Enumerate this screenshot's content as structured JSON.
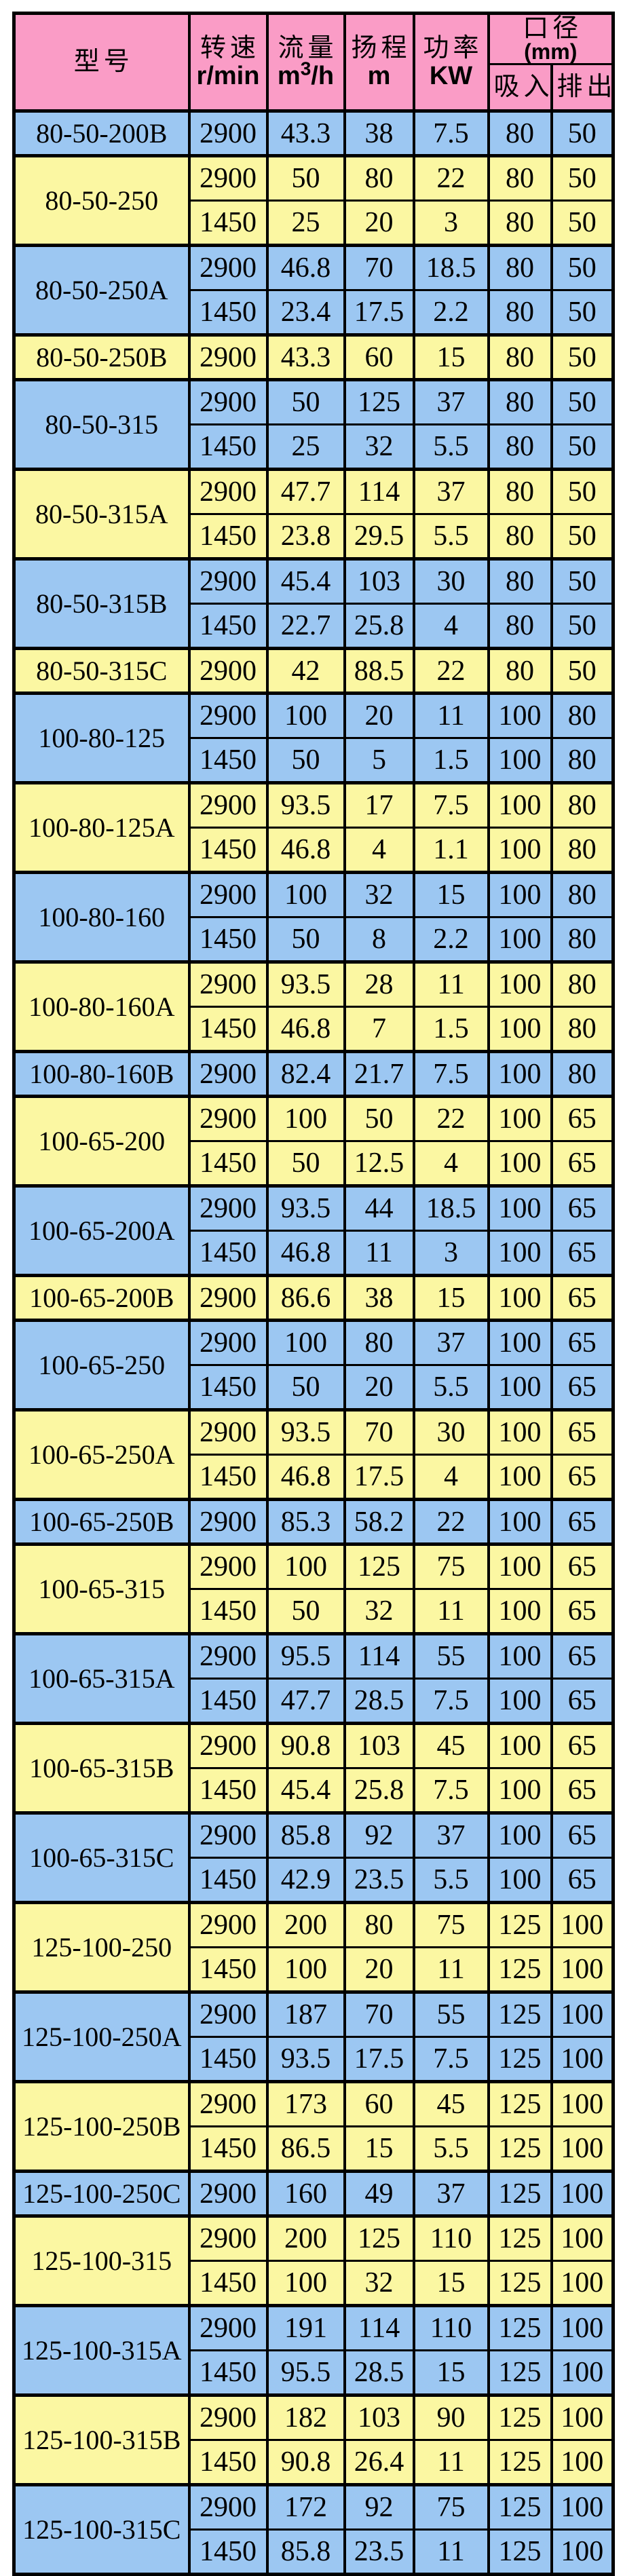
{
  "header": {
    "model_label": "型号",
    "speed_label": "转速",
    "speed_unit": "r/min",
    "flow_label": "流量",
    "flow_unit_pre": "m",
    "flow_unit_sup": "3",
    "flow_unit_post": "/h",
    "head_label": "扬程",
    "head_unit": "m",
    "power_label": "功率",
    "power_unit": "KW",
    "diameter_label": "口径",
    "diameter_unit": "(mm)",
    "suction_label": "吸入",
    "discharge_label": "排出"
  },
  "colors": {
    "page_bg": "#ffffff",
    "header_bg": "#fa9cc6",
    "band_blue": "#9cc7f2",
    "band_yellow": "#fbf7a2",
    "border_color": "#000000",
    "text_color": "#000000"
  },
  "groups": [
    {
      "model": "80-50-200B",
      "band": "blue",
      "rows": [
        [
          "2900",
          "43.3",
          "38",
          "7.5",
          "80",
          "50"
        ]
      ]
    },
    {
      "model": "80-50-250",
      "band": "yellow",
      "rows": [
        [
          "2900",
          "50",
          "80",
          "22",
          "80",
          "50"
        ],
        [
          "1450",
          "25",
          "20",
          "3",
          "80",
          "50"
        ]
      ]
    },
    {
      "model": "80-50-250A",
      "band": "blue",
      "rows": [
        [
          "2900",
          "46.8",
          "70",
          "18.5",
          "80",
          "50"
        ],
        [
          "1450",
          "23.4",
          "17.5",
          "2.2",
          "80",
          "50"
        ]
      ]
    },
    {
      "model": "80-50-250B",
      "band": "yellow",
      "rows": [
        [
          "2900",
          "43.3",
          "60",
          "15",
          "80",
          "50"
        ]
      ]
    },
    {
      "model": "80-50-315",
      "band": "blue",
      "rows": [
        [
          "2900",
          "50",
          "125",
          "37",
          "80",
          "50"
        ],
        [
          "1450",
          "25",
          "32",
          "5.5",
          "80",
          "50"
        ]
      ]
    },
    {
      "model": "80-50-315A",
      "band": "yellow",
      "rows": [
        [
          "2900",
          "47.7",
          "114",
          "37",
          "80",
          "50"
        ],
        [
          "1450",
          "23.8",
          "29.5",
          "5.5",
          "80",
          "50"
        ]
      ]
    },
    {
      "model": "80-50-315B",
      "band": "blue",
      "rows": [
        [
          "2900",
          "45.4",
          "103",
          "30",
          "80",
          "50"
        ],
        [
          "1450",
          "22.7",
          "25.8",
          "4",
          "80",
          "50"
        ]
      ]
    },
    {
      "model": "80-50-315C",
      "band": "yellow",
      "rows": [
        [
          "2900",
          "42",
          "88.5",
          "22",
          "80",
          "50"
        ]
      ]
    },
    {
      "model": "100-80-125",
      "band": "blue",
      "rows": [
        [
          "2900",
          "100",
          "20",
          "11",
          "100",
          "80"
        ],
        [
          "1450",
          "50",
          "5",
          "1.5",
          "100",
          "80"
        ]
      ]
    },
    {
      "model": "100-80-125A",
      "band": "yellow",
      "rows": [
        [
          "2900",
          "93.5",
          "17",
          "7.5",
          "100",
          "80"
        ],
        [
          "1450",
          "46.8",
          "4",
          "1.1",
          "100",
          "80"
        ]
      ]
    },
    {
      "model": "100-80-160",
      "band": "blue",
      "rows": [
        [
          "2900",
          "100",
          "32",
          "15",
          "100",
          "80"
        ],
        [
          "1450",
          "50",
          "8",
          "2.2",
          "100",
          "80"
        ]
      ]
    },
    {
      "model": "100-80-160A",
      "band": "yellow",
      "rows": [
        [
          "2900",
          "93.5",
          "28",
          "11",
          "100",
          "80"
        ],
        [
          "1450",
          "46.8",
          "7",
          "1.5",
          "100",
          "80"
        ]
      ]
    },
    {
      "model": "100-80-160B",
      "band": "blue",
      "rows": [
        [
          "2900",
          "82.4",
          "21.7",
          "7.5",
          "100",
          "80"
        ]
      ]
    },
    {
      "model": "100-65-200",
      "band": "yellow",
      "rows": [
        [
          "2900",
          "100",
          "50",
          "22",
          "100",
          "65"
        ],
        [
          "1450",
          "50",
          "12.5",
          "4",
          "100",
          "65"
        ]
      ]
    },
    {
      "model": "100-65-200A",
      "band": "blue",
      "rows": [
        [
          "2900",
          "93.5",
          "44",
          "18.5",
          "100",
          "65"
        ],
        [
          "1450",
          "46.8",
          "11",
          "3",
          "100",
          "65"
        ]
      ]
    },
    {
      "model": "100-65-200B",
      "band": "yellow",
      "rows": [
        [
          "2900",
          "86.6",
          "38",
          "15",
          "100",
          "65"
        ]
      ]
    },
    {
      "model": "100-65-250",
      "band": "blue",
      "rows": [
        [
          "2900",
          "100",
          "80",
          "37",
          "100",
          "65"
        ],
        [
          "1450",
          "50",
          "20",
          "5.5",
          "100",
          "65"
        ]
      ]
    },
    {
      "model": "100-65-250A",
      "band": "yellow",
      "rows": [
        [
          "2900",
          "93.5",
          "70",
          "30",
          "100",
          "65"
        ],
        [
          "1450",
          "46.8",
          "17.5",
          "4",
          "100",
          "65"
        ]
      ]
    },
    {
      "model": "100-65-250B",
      "band": "blue",
      "rows": [
        [
          "2900",
          "85.3",
          "58.2",
          "22",
          "100",
          "65"
        ]
      ]
    },
    {
      "model": "100-65-315",
      "band": "yellow",
      "rows": [
        [
          "2900",
          "100",
          "125",
          "75",
          "100",
          "65"
        ],
        [
          "1450",
          "50",
          "32",
          "11",
          "100",
          "65"
        ]
      ]
    },
    {
      "model": "100-65-315A",
      "band": "blue",
      "rows": [
        [
          "2900",
          "95.5",
          "114",
          "55",
          "100",
          "65"
        ],
        [
          "1450",
          "47.7",
          "28.5",
          "7.5",
          "100",
          "65"
        ]
      ]
    },
    {
      "model": "100-65-315B",
      "band": "yellow",
      "rows": [
        [
          "2900",
          "90.8",
          "103",
          "45",
          "100",
          "65"
        ],
        [
          "1450",
          "45.4",
          "25.8",
          "7.5",
          "100",
          "65"
        ]
      ]
    },
    {
      "model": "100-65-315C",
      "band": "blue",
      "rows": [
        [
          "2900",
          "85.8",
          "92",
          "37",
          "100",
          "65"
        ],
        [
          "1450",
          "42.9",
          "23.5",
          "5.5",
          "100",
          "65"
        ]
      ]
    },
    {
      "model": "125-100-250",
      "band": "yellow",
      "rows": [
        [
          "2900",
          "200",
          "80",
          "75",
          "125",
          "100"
        ],
        [
          "1450",
          "100",
          "20",
          "11",
          "125",
          "100"
        ]
      ]
    },
    {
      "model": "125-100-250A",
      "band": "blue",
      "rows": [
        [
          "2900",
          "187",
          "70",
          "55",
          "125",
          "100"
        ],
        [
          "1450",
          "93.5",
          "17.5",
          "7.5",
          "125",
          "100"
        ]
      ]
    },
    {
      "model": "125-100-250B",
      "band": "yellow",
      "rows": [
        [
          "2900",
          "173",
          "60",
          "45",
          "125",
          "100"
        ],
        [
          "1450",
          "86.5",
          "15",
          "5.5",
          "125",
          "100"
        ]
      ]
    },
    {
      "model": "125-100-250C",
      "band": "blue",
      "rows": [
        [
          "2900",
          "160",
          "49",
          "37",
          "125",
          "100"
        ]
      ]
    },
    {
      "model": "125-100-315",
      "band": "yellow",
      "rows": [
        [
          "2900",
          "200",
          "125",
          "110",
          "125",
          "100"
        ],
        [
          "1450",
          "100",
          "32",
          "15",
          "125",
          "100"
        ]
      ]
    },
    {
      "model": "125-100-315A",
      "band": "blue",
      "rows": [
        [
          "2900",
          "191",
          "114",
          "110",
          "125",
          "100"
        ],
        [
          "1450",
          "95.5",
          "28.5",
          "15",
          "125",
          "100"
        ]
      ]
    },
    {
      "model": "125-100-315B",
      "band": "yellow",
      "rows": [
        [
          "2900",
          "182",
          "103",
          "90",
          "125",
          "100"
        ],
        [
          "1450",
          "90.8",
          "26.4",
          "11",
          "125",
          "100"
        ]
      ]
    },
    {
      "model": "125-100-315C",
      "band": "blue",
      "rows": [
        [
          "2900",
          "172",
          "92",
          "75",
          "125",
          "100"
        ],
        [
          "1450",
          "85.8",
          "23.5",
          "11",
          "125",
          "100"
        ]
      ]
    }
  ]
}
